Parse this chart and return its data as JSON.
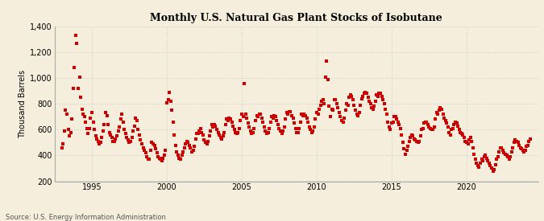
{
  "title": "Monthly U.S. Natural Gas Plant Stocks of Isobutane",
  "ylabel": "Thousand Barrels",
  "source": "Source: U.S. Energy Information Administration",
  "background_color": "#f5eedc",
  "marker_color": "#cc0000",
  "ylim": [
    200,
    1400
  ],
  "yticks": [
    200,
    400,
    600,
    800,
    1000,
    1200,
    1400
  ],
  "ytick_labels": [
    "200",
    "400",
    "600",
    "800",
    "1,000",
    "1,200",
    "1,400"
  ],
  "xlim_start": 1992.5,
  "xlim_end": 2024.8,
  "xticks": [
    1995,
    2000,
    2005,
    2010,
    2015,
    2020
  ],
  "data": [
    [
      1993.0,
      460
    ],
    [
      1993.083,
      490
    ],
    [
      1993.167,
      590
    ],
    [
      1993.25,
      750
    ],
    [
      1993.333,
      720
    ],
    [
      1993.417,
      600
    ],
    [
      1993.5,
      550
    ],
    [
      1993.583,
      580
    ],
    [
      1993.667,
      680
    ],
    [
      1993.75,
      920
    ],
    [
      1993.833,
      1080
    ],
    [
      1993.917,
      1330
    ],
    [
      1994.0,
      1270
    ],
    [
      1994.083,
      920
    ],
    [
      1994.167,
      1010
    ],
    [
      1994.25,
      850
    ],
    [
      1994.333,
      760
    ],
    [
      1994.417,
      720
    ],
    [
      1994.5,
      700
    ],
    [
      1994.583,
      660
    ],
    [
      1994.667,
      610
    ],
    [
      1994.75,
      570
    ],
    [
      1994.833,
      610
    ],
    [
      1994.917,
      690
    ],
    [
      1995.0,
      730
    ],
    [
      1995.083,
      660
    ],
    [
      1995.167,
      600
    ],
    [
      1995.25,
      550
    ],
    [
      1995.333,
      530
    ],
    [
      1995.417,
      510
    ],
    [
      1995.5,
      490
    ],
    [
      1995.583,
      500
    ],
    [
      1995.667,
      540
    ],
    [
      1995.75,
      590
    ],
    [
      1995.833,
      640
    ],
    [
      1995.917,
      730
    ],
    [
      1996.0,
      710
    ],
    [
      1996.083,
      640
    ],
    [
      1996.167,
      580
    ],
    [
      1996.25,
      560
    ],
    [
      1996.333,
      540
    ],
    [
      1996.417,
      510
    ],
    [
      1996.5,
      510
    ],
    [
      1996.583,
      530
    ],
    [
      1996.667,
      550
    ],
    [
      1996.75,
      590
    ],
    [
      1996.833,
      620
    ],
    [
      1996.917,
      680
    ],
    [
      1997.0,
      720
    ],
    [
      1997.083,
      660
    ],
    [
      1997.167,
      600
    ],
    [
      1997.25,
      570
    ],
    [
      1997.333,
      540
    ],
    [
      1997.417,
      520
    ],
    [
      1997.5,
      500
    ],
    [
      1997.583,
      510
    ],
    [
      1997.667,
      540
    ],
    [
      1997.75,
      590
    ],
    [
      1997.833,
      630
    ],
    [
      1997.917,
      690
    ],
    [
      1998.0,
      670
    ],
    [
      1998.083,
      600
    ],
    [
      1998.167,
      560
    ],
    [
      1998.25,
      520
    ],
    [
      1998.333,
      490
    ],
    [
      1998.417,
      460
    ],
    [
      1998.5,
      440
    ],
    [
      1998.583,
      420
    ],
    [
      1998.667,
      390
    ],
    [
      1998.75,
      370
    ],
    [
      1998.833,
      370
    ],
    [
      1998.917,
      440
    ],
    [
      1999.0,
      500
    ],
    [
      1999.083,
      490
    ],
    [
      1999.167,
      480
    ],
    [
      1999.25,
      450
    ],
    [
      1999.333,
      420
    ],
    [
      1999.417,
      390
    ],
    [
      1999.5,
      380
    ],
    [
      1999.583,
      370
    ],
    [
      1999.667,
      360
    ],
    [
      1999.75,
      380
    ],
    [
      1999.833,
      400
    ],
    [
      1999.917,
      440
    ],
    [
      2000.0,
      810
    ],
    [
      2000.083,
      830
    ],
    [
      2000.167,
      890
    ],
    [
      2000.25,
      820
    ],
    [
      2000.333,
      750
    ],
    [
      2000.417,
      660
    ],
    [
      2000.5,
      560
    ],
    [
      2000.583,
      480
    ],
    [
      2000.667,
      430
    ],
    [
      2000.75,
      400
    ],
    [
      2000.833,
      380
    ],
    [
      2000.917,
      370
    ],
    [
      2001.0,
      400
    ],
    [
      2001.083,
      430
    ],
    [
      2001.167,
      460
    ],
    [
      2001.25,
      490
    ],
    [
      2001.333,
      510
    ],
    [
      2001.417,
      500
    ],
    [
      2001.5,
      480
    ],
    [
      2001.583,
      460
    ],
    [
      2001.667,
      430
    ],
    [
      2001.75,
      440
    ],
    [
      2001.833,
      470
    ],
    [
      2001.917,
      530
    ],
    [
      2002.0,
      570
    ],
    [
      2002.083,
      570
    ],
    [
      2002.167,
      590
    ],
    [
      2002.25,
      610
    ],
    [
      2002.333,
      580
    ],
    [
      2002.417,
      560
    ],
    [
      2002.5,
      520
    ],
    [
      2002.583,
      500
    ],
    [
      2002.667,
      490
    ],
    [
      2002.75,
      510
    ],
    [
      2002.833,
      550
    ],
    [
      2002.917,
      590
    ],
    [
      2003.0,
      640
    ],
    [
      2003.083,
      620
    ],
    [
      2003.167,
      640
    ],
    [
      2003.25,
      630
    ],
    [
      2003.333,
      600
    ],
    [
      2003.417,
      580
    ],
    [
      2003.5,
      560
    ],
    [
      2003.583,
      540
    ],
    [
      2003.667,
      530
    ],
    [
      2003.75,
      550
    ],
    [
      2003.833,
      580
    ],
    [
      2003.917,
      640
    ],
    [
      2004.0,
      680
    ],
    [
      2004.083,
      670
    ],
    [
      2004.167,
      690
    ],
    [
      2004.25,
      680
    ],
    [
      2004.333,
      660
    ],
    [
      2004.417,
      630
    ],
    [
      2004.5,
      600
    ],
    [
      2004.583,
      580
    ],
    [
      2004.667,
      570
    ],
    [
      2004.75,
      580
    ],
    [
      2004.833,
      610
    ],
    [
      2004.917,
      670
    ],
    [
      2005.0,
      720
    ],
    [
      2005.083,
      700
    ],
    [
      2005.167,
      960
    ],
    [
      2005.25,
      720
    ],
    [
      2005.333,
      690
    ],
    [
      2005.417,
      650
    ],
    [
      2005.5,
      620
    ],
    [
      2005.583,
      590
    ],
    [
      2005.667,
      570
    ],
    [
      2005.75,
      580
    ],
    [
      2005.833,
      610
    ],
    [
      2005.917,
      670
    ],
    [
      2006.0,
      710
    ],
    [
      2006.083,
      700
    ],
    [
      2006.167,
      720
    ],
    [
      2006.25,
      720
    ],
    [
      2006.333,
      690
    ],
    [
      2006.417,
      660
    ],
    [
      2006.5,
      620
    ],
    [
      2006.583,
      590
    ],
    [
      2006.667,
      570
    ],
    [
      2006.75,
      580
    ],
    [
      2006.833,
      610
    ],
    [
      2006.917,
      660
    ],
    [
      2007.0,
      700
    ],
    [
      2007.083,
      690
    ],
    [
      2007.167,
      710
    ],
    [
      2007.25,
      700
    ],
    [
      2007.333,
      670
    ],
    [
      2007.417,
      640
    ],
    [
      2007.5,
      610
    ],
    [
      2007.583,
      590
    ],
    [
      2007.667,
      570
    ],
    [
      2007.75,
      590
    ],
    [
      2007.833,
      620
    ],
    [
      2007.917,
      680
    ],
    [
      2008.0,
      730
    ],
    [
      2008.083,
      720
    ],
    [
      2008.167,
      740
    ],
    [
      2008.25,
      740
    ],
    [
      2008.333,
      710
    ],
    [
      2008.417,
      690
    ],
    [
      2008.5,
      650
    ],
    [
      2008.583,
      610
    ],
    [
      2008.667,
      580
    ],
    [
      2008.75,
      580
    ],
    [
      2008.833,
      610
    ],
    [
      2008.917,
      660
    ],
    [
      2009.0,
      720
    ],
    [
      2009.083,
      710
    ],
    [
      2009.167,
      720
    ],
    [
      2009.25,
      710
    ],
    [
      2009.333,
      690
    ],
    [
      2009.417,
      660
    ],
    [
      2009.5,
      620
    ],
    [
      2009.583,
      600
    ],
    [
      2009.667,
      580
    ],
    [
      2009.75,
      590
    ],
    [
      2009.833,
      620
    ],
    [
      2009.917,
      680
    ],
    [
      2010.0,
      730
    ],
    [
      2010.083,
      720
    ],
    [
      2010.167,
      760
    ],
    [
      2010.25,
      790
    ],
    [
      2010.333,
      820
    ],
    [
      2010.417,
      830
    ],
    [
      2010.5,
      800
    ],
    [
      2010.583,
      1010
    ],
    [
      2010.667,
      1130
    ],
    [
      2010.75,
      990
    ],
    [
      2010.833,
      780
    ],
    [
      2010.917,
      700
    ],
    [
      2011.0,
      760
    ],
    [
      2011.083,
      750
    ],
    [
      2011.167,
      830
    ],
    [
      2011.25,
      830
    ],
    [
      2011.333,
      800
    ],
    [
      2011.417,
      770
    ],
    [
      2011.5,
      730
    ],
    [
      2011.583,
      700
    ],
    [
      2011.667,
      670
    ],
    [
      2011.75,
      660
    ],
    [
      2011.833,
      690
    ],
    [
      2011.917,
      750
    ],
    [
      2012.0,
      800
    ],
    [
      2012.083,
      790
    ],
    [
      2012.167,
      850
    ],
    [
      2012.25,
      870
    ],
    [
      2012.333,
      860
    ],
    [
      2012.417,
      830
    ],
    [
      2012.5,
      790
    ],
    [
      2012.583,
      750
    ],
    [
      2012.667,
      720
    ],
    [
      2012.75,
      710
    ],
    [
      2012.833,
      730
    ],
    [
      2012.917,
      790
    ],
    [
      2013.0,
      840
    ],
    [
      2013.083,
      860
    ],
    [
      2013.167,
      880
    ],
    [
      2013.25,
      890
    ],
    [
      2013.333,
      880
    ],
    [
      2013.417,
      850
    ],
    [
      2013.5,
      820
    ],
    [
      2013.583,
      800
    ],
    [
      2013.667,
      770
    ],
    [
      2013.75,
      760
    ],
    [
      2013.833,
      780
    ],
    [
      2013.917,
      820
    ],
    [
      2014.0,
      870
    ],
    [
      2014.083,
      860
    ],
    [
      2014.167,
      880
    ],
    [
      2014.25,
      880
    ],
    [
      2014.333,
      860
    ],
    [
      2014.417,
      830
    ],
    [
      2014.5,
      800
    ],
    [
      2014.583,
      760
    ],
    [
      2014.667,
      720
    ],
    [
      2014.75,
      660
    ],
    [
      2014.833,
      620
    ],
    [
      2014.917,
      600
    ],
    [
      2015.0,
      650
    ],
    [
      2015.083,
      660
    ],
    [
      2015.167,
      700
    ],
    [
      2015.25,
      700
    ],
    [
      2015.333,
      680
    ],
    [
      2015.417,
      660
    ],
    [
      2015.5,
      640
    ],
    [
      2015.583,
      610
    ],
    [
      2015.667,
      560
    ],
    [
      2015.75,
      500
    ],
    [
      2015.833,
      450
    ],
    [
      2015.917,
      410
    ],
    [
      2016.0,
      440
    ],
    [
      2016.083,
      470
    ],
    [
      2016.167,
      510
    ],
    [
      2016.25,
      540
    ],
    [
      2016.333,
      560
    ],
    [
      2016.417,
      550
    ],
    [
      2016.5,
      530
    ],
    [
      2016.583,
      520
    ],
    [
      2016.667,
      510
    ],
    [
      2016.75,
      500
    ],
    [
      2016.833,
      510
    ],
    [
      2016.917,
      550
    ],
    [
      2017.0,
      600
    ],
    [
      2017.083,
      610
    ],
    [
      2017.167,
      650
    ],
    [
      2017.25,
      660
    ],
    [
      2017.333,
      660
    ],
    [
      2017.417,
      640
    ],
    [
      2017.5,
      620
    ],
    [
      2017.583,
      610
    ],
    [
      2017.667,
      600
    ],
    [
      2017.75,
      600
    ],
    [
      2017.833,
      620
    ],
    [
      2017.917,
      680
    ],
    [
      2018.0,
      730
    ],
    [
      2018.083,
      720
    ],
    [
      2018.167,
      750
    ],
    [
      2018.25,
      770
    ],
    [
      2018.333,
      760
    ],
    [
      2018.417,
      720
    ],
    [
      2018.5,
      690
    ],
    [
      2018.583,
      670
    ],
    [
      2018.667,
      650
    ],
    [
      2018.75,
      620
    ],
    [
      2018.833,
      580
    ],
    [
      2018.917,
      560
    ],
    [
      2019.0,
      600
    ],
    [
      2019.083,
      610
    ],
    [
      2019.167,
      640
    ],
    [
      2019.25,
      660
    ],
    [
      2019.333,
      650
    ],
    [
      2019.417,
      630
    ],
    [
      2019.5,
      600
    ],
    [
      2019.583,
      580
    ],
    [
      2019.667,
      570
    ],
    [
      2019.75,
      560
    ],
    [
      2019.833,
      540
    ],
    [
      2019.917,
      510
    ],
    [
      2020.0,
      500
    ],
    [
      2020.083,
      490
    ],
    [
      2020.167,
      520
    ],
    [
      2020.25,
      540
    ],
    [
      2020.333,
      510
    ],
    [
      2020.417,
      460
    ],
    [
      2020.5,
      410
    ],
    [
      2020.583,
      370
    ],
    [
      2020.667,
      340
    ],
    [
      2020.75,
      320
    ],
    [
      2020.833,
      310
    ],
    [
      2020.917,
      340
    ],
    [
      2021.0,
      370
    ],
    [
      2021.083,
      360
    ],
    [
      2021.167,
      390
    ],
    [
      2021.25,
      400
    ],
    [
      2021.333,
      380
    ],
    [
      2021.417,
      360
    ],
    [
      2021.5,
      340
    ],
    [
      2021.583,
      320
    ],
    [
      2021.667,
      300
    ],
    [
      2021.75,
      280
    ],
    [
      2021.833,
      290
    ],
    [
      2021.917,
      330
    ],
    [
      2022.0,
      370
    ],
    [
      2022.083,
      390
    ],
    [
      2022.167,
      430
    ],
    [
      2022.25,
      460
    ],
    [
      2022.333,
      460
    ],
    [
      2022.417,
      440
    ],
    [
      2022.5,
      420
    ],
    [
      2022.583,
      410
    ],
    [
      2022.667,
      400
    ],
    [
      2022.75,
      390
    ],
    [
      2022.833,
      370
    ],
    [
      2022.917,
      390
    ],
    [
      2023.0,
      430
    ],
    [
      2023.083,
      460
    ],
    [
      2023.167,
      500
    ],
    [
      2023.25,
      520
    ],
    [
      2023.333,
      510
    ],
    [
      2023.417,
      500
    ],
    [
      2023.5,
      480
    ],
    [
      2023.583,
      460
    ],
    [
      2023.667,
      450
    ],
    [
      2023.75,
      440
    ],
    [
      2023.833,
      430
    ],
    [
      2023.917,
      440
    ],
    [
      2024.0,
      470
    ],
    [
      2024.083,
      480
    ],
    [
      2024.167,
      510
    ],
    [
      2024.25,
      530
    ]
  ]
}
